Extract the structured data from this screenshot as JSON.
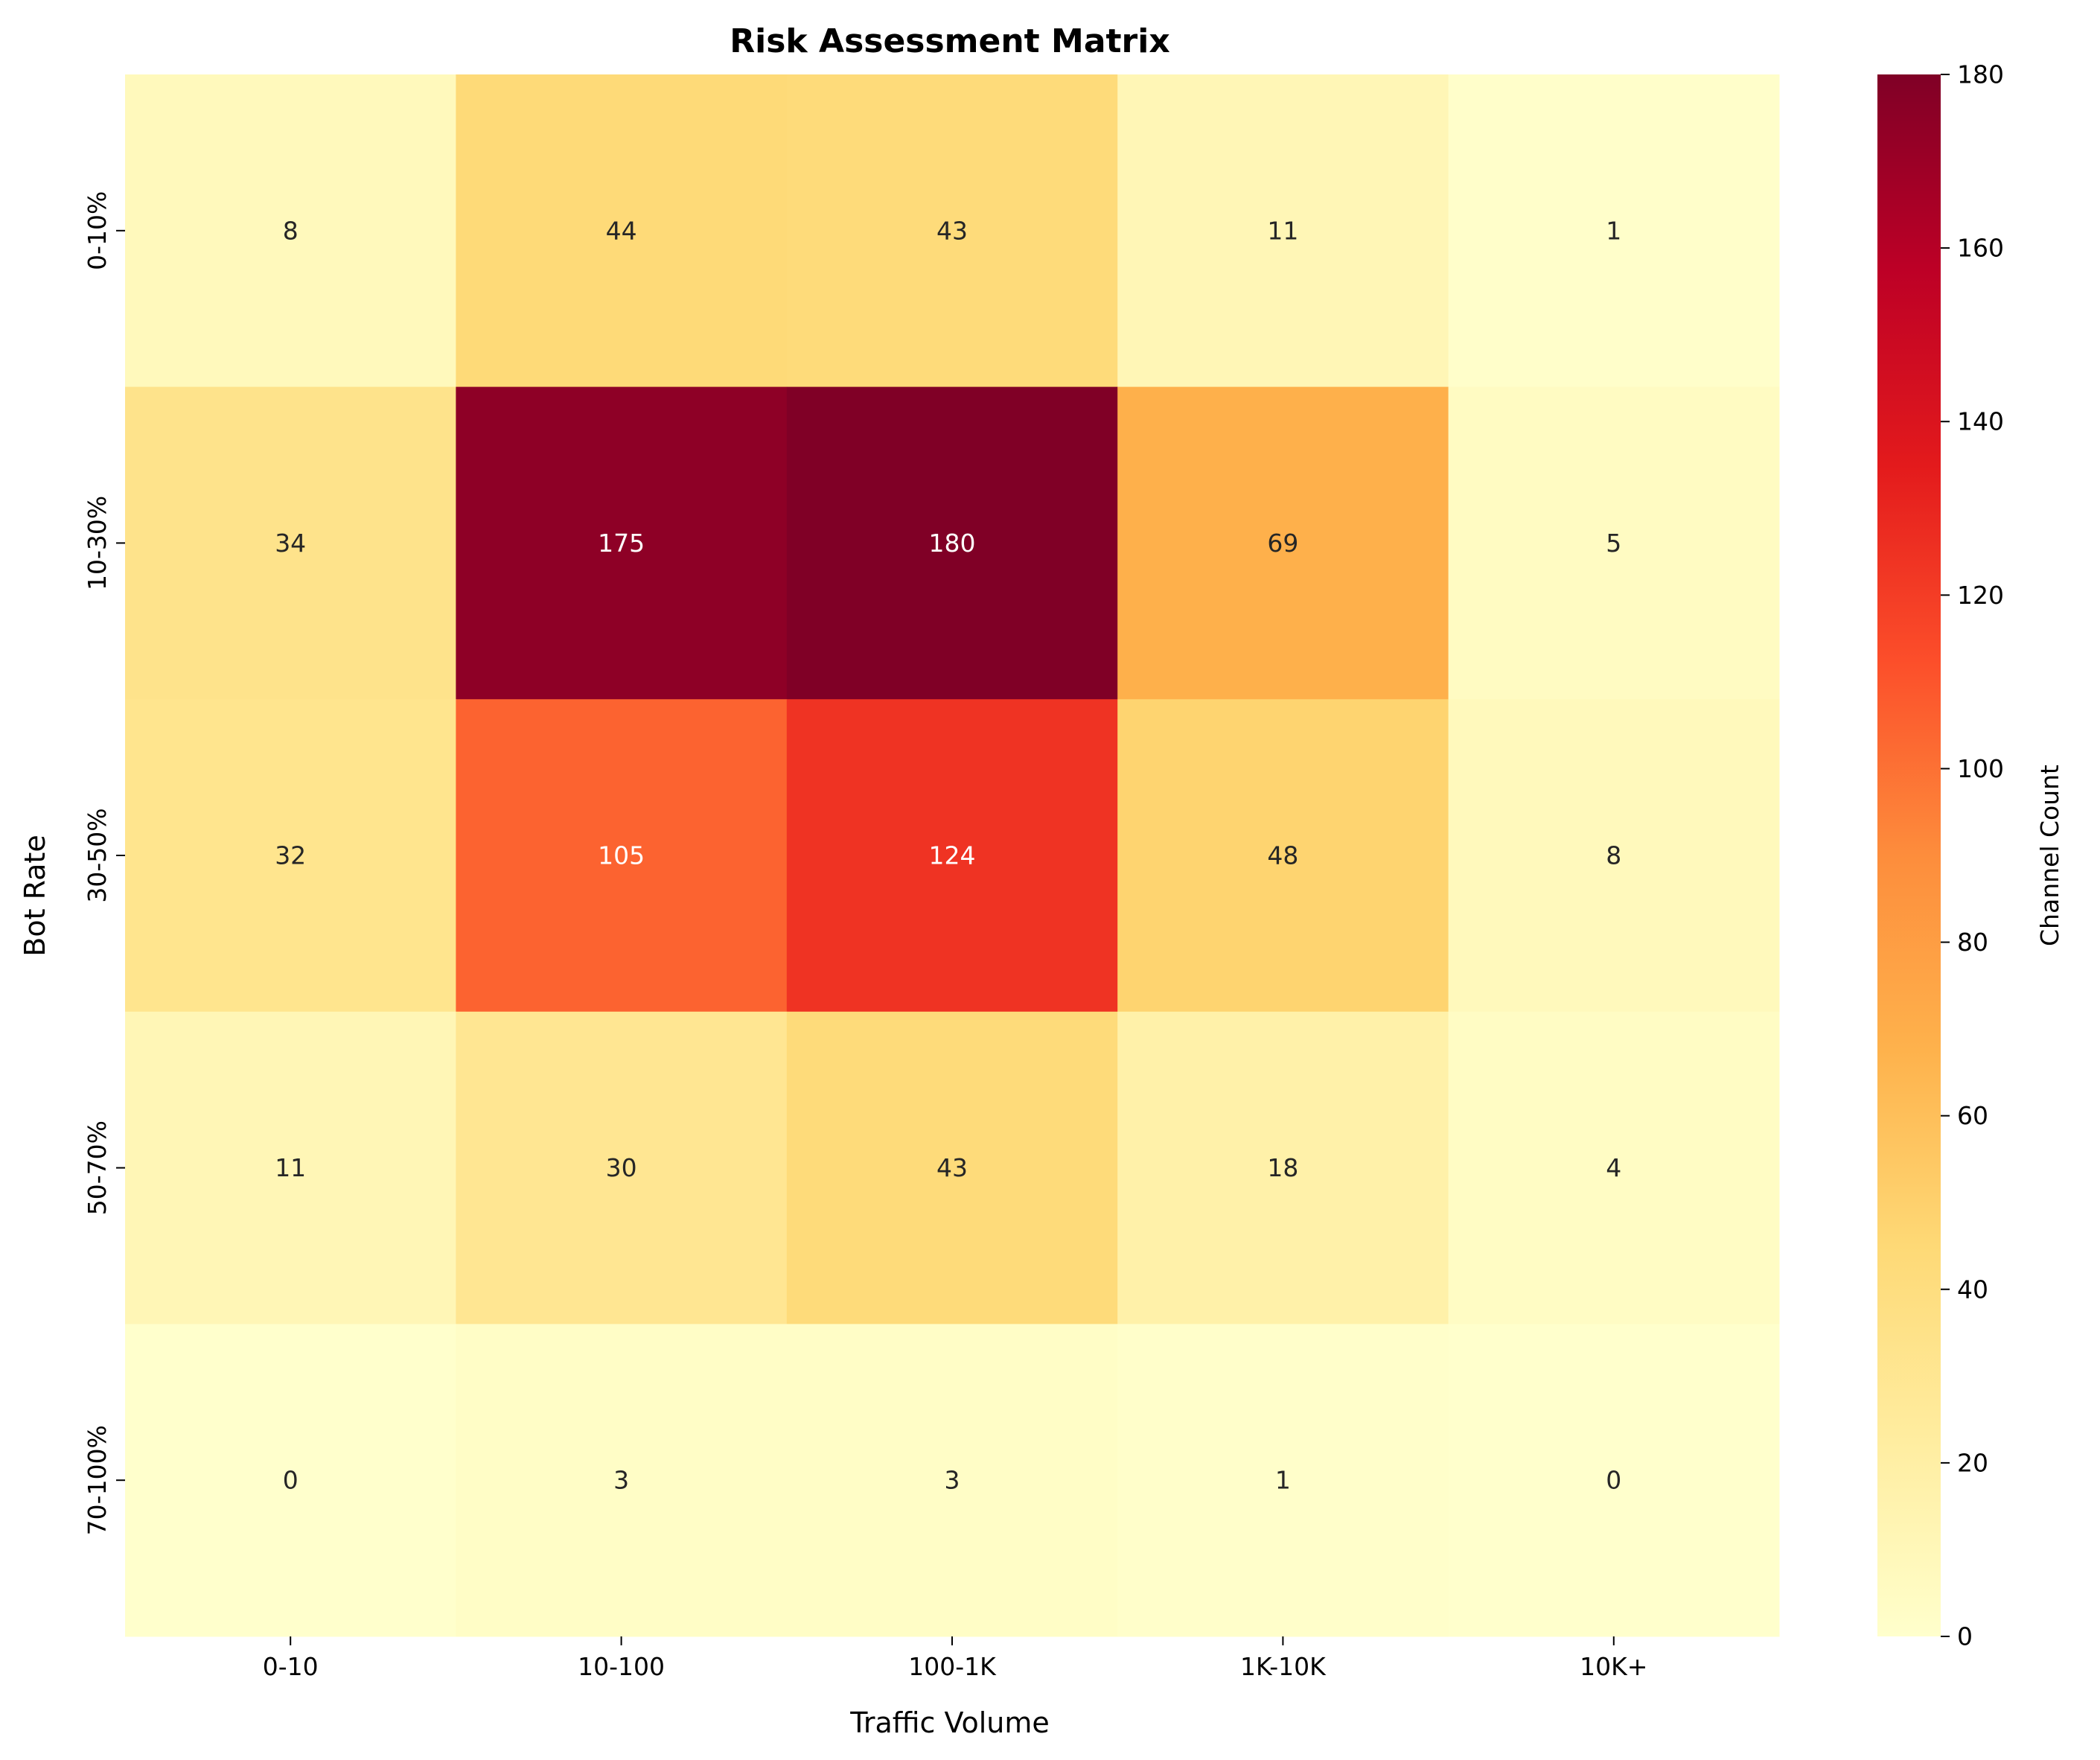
{
  "chart_data": {
    "type": "heatmap",
    "title": "Risk Assessment Matrix",
    "xlabel": "Traffic Volume",
    "ylabel": "Bot Rate",
    "x_categories": [
      "0-10",
      "10-100",
      "100-1K",
      "1K-10K",
      "10K+"
    ],
    "y_categories": [
      "0-10%",
      "10-30%",
      "30-50%",
      "50-70%",
      "70-100%"
    ],
    "values": [
      [
        8,
        44,
        43,
        11,
        1
      ],
      [
        34,
        175,
        180,
        69,
        5
      ],
      [
        32,
        105,
        124,
        48,
        8
      ],
      [
        11,
        30,
        43,
        18,
        4
      ],
      [
        0,
        3,
        3,
        1,
        0
      ]
    ],
    "colorbar": {
      "label": "Channel Count",
      "range": [
        0,
        180
      ],
      "ticks": [
        0,
        20,
        40,
        60,
        80,
        100,
        120,
        140,
        160,
        180
      ],
      "colormap": "YlOrRd"
    }
  }
}
